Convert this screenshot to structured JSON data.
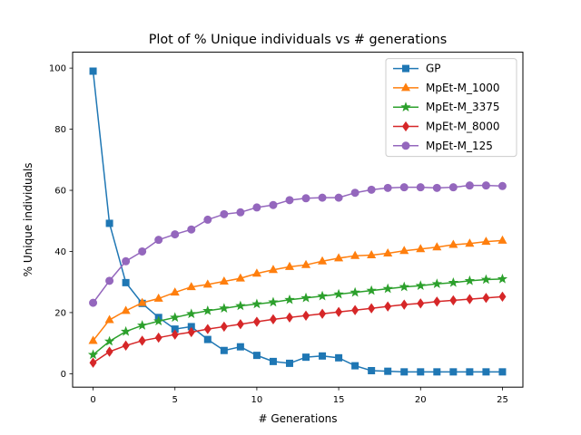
{
  "chart_data": {
    "type": "line",
    "title": "Plot of % Unique individuals vs # generations",
    "xlabel": "# Generations",
    "ylabel": "% Unique individuals",
    "xlim": [
      -1.25,
      26.25
    ],
    "ylim": [
      -4.4,
      105.2
    ],
    "xticks": [
      0,
      5,
      10,
      15,
      20,
      25
    ],
    "yticks": [
      0,
      20,
      40,
      60,
      80,
      100
    ],
    "grid": false,
    "legend_position": "top-right",
    "x": [
      0,
      1,
      2,
      3,
      4,
      5,
      6,
      7,
      8,
      9,
      10,
      11,
      12,
      13,
      14,
      15,
      16,
      17,
      18,
      19,
      20,
      21,
      22,
      23,
      24,
      25
    ],
    "series": [
      {
        "name": "GP",
        "color": "#1f77b4",
        "marker": "square",
        "values": [
          99.0,
          49.2,
          29.8,
          23.0,
          18.4,
          14.6,
          15.4,
          11.2,
          7.6,
          8.8,
          6.0,
          4.0,
          3.4,
          5.4,
          5.8,
          5.2,
          2.6,
          1.0,
          0.8,
          0.6,
          0.6,
          0.6,
          0.6,
          0.6,
          0.6,
          0.6
        ]
      },
      {
        "name": "MpEt-M_1000",
        "color": "#ff7f0e",
        "marker": "triangle",
        "values": [
          10.8,
          17.6,
          20.6,
          23.2,
          24.6,
          26.6,
          28.4,
          29.2,
          30.2,
          31.2,
          32.8,
          34.0,
          35.0,
          35.6,
          36.8,
          37.8,
          38.6,
          38.8,
          39.4,
          40.2,
          40.8,
          41.4,
          42.2,
          42.6,
          43.2,
          43.6
        ]
      },
      {
        "name": "MpEt-M_3375",
        "color": "#2ca02c",
        "marker": "star",
        "values": [
          6.2,
          10.6,
          13.8,
          15.8,
          17.2,
          18.4,
          19.6,
          20.6,
          21.4,
          22.2,
          22.8,
          23.4,
          24.2,
          24.8,
          25.4,
          26.0,
          26.6,
          27.2,
          27.8,
          28.4,
          28.8,
          29.4,
          29.8,
          30.4,
          30.8,
          31.0
        ]
      },
      {
        "name": "MpEt-M_8000",
        "color": "#d62728",
        "marker": "diamond",
        "values": [
          3.6,
          7.2,
          9.2,
          10.8,
          11.8,
          12.8,
          13.6,
          14.6,
          15.4,
          16.2,
          17.0,
          17.8,
          18.4,
          19.0,
          19.6,
          20.2,
          20.8,
          21.4,
          22.0,
          22.6,
          23.0,
          23.6,
          24.0,
          24.4,
          24.8,
          25.2
        ]
      },
      {
        "name": "MpEt-M_125",
        "color": "#9467bd",
        "marker": "circle",
        "values": [
          23.2,
          30.4,
          36.8,
          40.0,
          43.8,
          45.6,
          47.2,
          50.4,
          52.2,
          52.8,
          54.4,
          55.2,
          56.8,
          57.4,
          57.6,
          57.6,
          59.2,
          60.2,
          60.8,
          61.0,
          61.0,
          60.8,
          61.0,
          61.6,
          61.6,
          61.4
        ]
      }
    ]
  }
}
